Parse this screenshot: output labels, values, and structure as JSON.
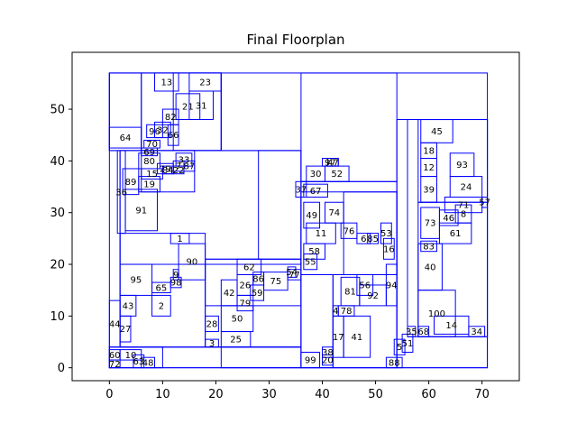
{
  "chart_data": {
    "type": "floorplan",
    "title": "Final Floorplan",
    "xlim": [
      -7,
      77
    ],
    "ylim": [
      -2.5,
      61
    ],
    "xticks": [
      0,
      10,
      20,
      30,
      40,
      50,
      60,
      70
    ],
    "yticks": [
      0,
      10,
      20,
      30,
      40,
      50
    ],
    "colors": {
      "outline": "#0000ff",
      "axes": "#000000"
    },
    "rooms": [
      {
        "id": "1",
        "x": 11.5,
        "y": 24,
        "w": 3.5,
        "h": 2
      },
      {
        "id": "2",
        "x": 8,
        "y": 10,
        "w": 3.5,
        "h": 4
      },
      {
        "id": "3",
        "x": 18,
        "y": 4,
        "w": 2.5,
        "h": 1.5
      },
      {
        "id": "5",
        "x": 53.5,
        "y": 2.5,
        "w": 2,
        "h": 3
      },
      {
        "id": "6",
        "x": 46.5,
        "y": 24,
        "w": 2.5,
        "h": 2
      },
      {
        "id": "8",
        "x": 65,
        "y": 28,
        "w": 3,
        "h": 3.5
      },
      {
        "id": "9",
        "x": 12,
        "y": 17,
        "w": 1,
        "h": 2
      },
      {
        "id": "10",
        "x": 2,
        "y": 1.5,
        "w": 4,
        "h": 2
      },
      {
        "id": "11",
        "x": 37,
        "y": 24,
        "w": 5.5,
        "h": 4
      },
      {
        "id": "12",
        "x": 58.5,
        "y": 37,
        "w": 3,
        "h": 3.5
      },
      {
        "id": "13",
        "x": 8.5,
        "y": 53.5,
        "w": 4.5,
        "h": 3.5
      },
      {
        "id": "14",
        "x": 61,
        "y": 6.5,
        "w": 6.5,
        "h": 3.5
      },
      {
        "id": "15",
        "x": 6,
        "y": 36.5,
        "w": 4,
        "h": 2
      },
      {
        "id": "16",
        "x": 51.5,
        "y": 21,
        "w": 2,
        "h": 4
      },
      {
        "id": "17",
        "x": 42,
        "y": 2,
        "w": 2,
        "h": 8
      },
      {
        "id": "18",
        "x": 58.5,
        "y": 40.5,
        "w": 3,
        "h": 3
      },
      {
        "id": "19",
        "x": 5.5,
        "y": 34,
        "w": 4,
        "h": 3
      },
      {
        "id": "20",
        "x": 40,
        "y": 0.5,
        "w": 2,
        "h": 2
      },
      {
        "id": "21",
        "x": 12.5,
        "y": 48,
        "w": 4.5,
        "h": 5
      },
      {
        "id": "23",
        "x": 15,
        "y": 53.5,
        "w": 6,
        "h": 3.5
      },
      {
        "id": "24",
        "x": 64,
        "y": 33,
        "w": 6,
        "h": 4
      },
      {
        "id": "25",
        "x": 21,
        "y": 4,
        "w": 5.5,
        "h": 3
      },
      {
        "id": "26",
        "x": 24,
        "y": 14,
        "w": 3,
        "h": 4
      },
      {
        "id": "27",
        "x": 2,
        "y": 5,
        "w": 2,
        "h": 5
      },
      {
        "id": "28",
        "x": 18,
        "y": 7,
        "w": 2.5,
        "h": 3
      },
      {
        "id": "29",
        "x": 9,
        "y": 37.5,
        "w": 3,
        "h": 2
      },
      {
        "id": "30",
        "x": 37,
        "y": 36,
        "w": 3.5,
        "h": 3
      },
      {
        "id": "31",
        "x": 15,
        "y": 48,
        "w": 4.5,
        "h": 5.5
      },
      {
        "id": "32",
        "x": 8.5,
        "y": 44.5,
        "w": 3,
        "h": 3
      },
      {
        "id": "33",
        "x": 12.5,
        "y": 39,
        "w": 3,
        "h": 2.5
      },
      {
        "id": "34",
        "x": 67.5,
        "y": 6,
        "w": 3,
        "h": 2
      },
      {
        "id": "35",
        "x": 56,
        "y": 6,
        "w": 1.5,
        "h": 2
      },
      {
        "id": "36",
        "x": 1.5,
        "y": 26,
        "w": 1.5,
        "h": 16
      },
      {
        "id": "37",
        "x": 35,
        "y": 33,
        "w": 2,
        "h": 3
      },
      {
        "id": "38",
        "x": 40,
        "y": 2,
        "w": 2,
        "h": 2
      },
      {
        "id": "39",
        "x": 58.5,
        "y": 32,
        "w": 3,
        "h": 5
      },
      {
        "id": "40",
        "x": 58,
        "y": 15,
        "w": 4.5,
        "h": 9
      },
      {
        "id": "41",
        "x": 44,
        "y": 2,
        "w": 5,
        "h": 8
      },
      {
        "id": "42",
        "x": 21,
        "y": 12,
        "w": 3,
        "h": 5
      },
      {
        "id": "43",
        "x": 2,
        "y": 10,
        "w": 3,
        "h": 4
      },
      {
        "id": "44",
        "x": 0,
        "y": 4,
        "w": 2,
        "h": 9
      },
      {
        "id": "45",
        "x": 58.5,
        "y": 43.5,
        "w": 6,
        "h": 4.5
      },
      {
        "id": "46",
        "x": 62,
        "y": 27.5,
        "w": 3.5,
        "h": 3
      },
      {
        "id": "48",
        "x": 6,
        "y": 0,
        "w": 2.5,
        "h": 2
      },
      {
        "id": "49",
        "x": 36.5,
        "y": 27,
        "w": 3,
        "h": 5
      },
      {
        "id": "50",
        "x": 21,
        "y": 7,
        "w": 6,
        "h": 5
      },
      {
        "id": "51",
        "x": 55,
        "y": 3,
        "w": 2,
        "h": 3.5
      },
      {
        "id": "52",
        "x": 40.5,
        "y": 36,
        "w": 4.5,
        "h": 3
      },
      {
        "id": "53",
        "x": 51,
        "y": 24,
        "w": 2,
        "h": 4
      },
      {
        "id": "55",
        "x": 36.5,
        "y": 19,
        "w": 2.5,
        "h": 3
      },
      {
        "id": "56",
        "x": 46.5,
        "y": 14,
        "w": 3,
        "h": 4
      },
      {
        "id": "58",
        "x": 36.5,
        "y": 21,
        "w": 4,
        "h": 3
      },
      {
        "id": "59",
        "x": 26.5,
        "y": 13,
        "w": 2.5,
        "h": 3
      },
      {
        "id": "60",
        "x": 0,
        "y": 1.5,
        "w": 2,
        "h": 2
      },
      {
        "id": "61",
        "x": 62,
        "y": 24,
        "w": 6,
        "h": 4
      },
      {
        "id": "62",
        "x": 24,
        "y": 18,
        "w": 4.5,
        "h": 3
      },
      {
        "id": "63",
        "x": 4.5,
        "y": 0,
        "w": 2,
        "h": 2.5
      },
      {
        "id": "64",
        "x": 0,
        "y": 42.5,
        "w": 6,
        "h": 4
      },
      {
        "id": "65",
        "x": 8,
        "y": 14.5,
        "w": 3.5,
        "h": 2
      },
      {
        "id": "66",
        "x": 11,
        "y": 43,
        "w": 2,
        "h": 4
      },
      {
        "id": "67",
        "x": 36.5,
        "y": 33,
        "w": 4.5,
        "h": 2.5
      },
      {
        "id": "68",
        "x": 58,
        "y": 6,
        "w": 2,
        "h": 2
      },
      {
        "id": "69",
        "x": 6,
        "y": 41,
        "w": 3,
        "h": 1.5
      },
      {
        "id": "70",
        "x": 6.5,
        "y": 42.5,
        "w": 3,
        "h": 1.5
      },
      {
        "id": "71",
        "x": 63,
        "y": 30,
        "w": 7,
        "h": 3
      },
      {
        "id": "72",
        "x": 0,
        "y": 0,
        "w": 2,
        "h": 1.5
      },
      {
        "id": "73",
        "x": 58.5,
        "y": 25,
        "w": 3.5,
        "h": 6
      },
      {
        "id": "74",
        "x": 40.5,
        "y": 28,
        "w": 3.5,
        "h": 4
      },
      {
        "id": "75",
        "x": 29,
        "y": 15,
        "w": 4.5,
        "h": 3.5
      },
      {
        "id": "76",
        "x": 43.5,
        "y": 25,
        "w": 3,
        "h": 3
      },
      {
        "id": "77",
        "x": 33.5,
        "y": 17,
        "w": 2.5,
        "h": 2
      },
      {
        "id": "78",
        "x": 43,
        "y": 10,
        "w": 3,
        "h": 2
      },
      {
        "id": "79",
        "x": 24,
        "y": 11,
        "w": 3,
        "h": 3
      },
      {
        "id": "80",
        "x": 5.5,
        "y": 38.5,
        "w": 4,
        "h": 3
      },
      {
        "id": "81",
        "x": 43.5,
        "y": 12,
        "w": 3.5,
        "h": 5.5
      },
      {
        "id": "82",
        "x": 10,
        "y": 47,
        "w": 3,
        "h": 3
      },
      {
        "id": "83",
        "x": 58.5,
        "y": 22.5,
        "w": 3,
        "h": 2
      },
      {
        "id": "85",
        "x": 48.5,
        "y": 24,
        "w": 2,
        "h": 2
      },
      {
        "id": "86",
        "x": 27,
        "y": 16,
        "w": 2,
        "h": 2.5
      },
      {
        "id": "87",
        "x": 14,
        "y": 38,
        "w": 2,
        "h": 2
      },
      {
        "id": "89",
        "x": 2.5,
        "y": 33.5,
        "w": 3,
        "h": 5
      },
      {
        "id": "90",
        "x": 13,
        "y": 17,
        "w": 5,
        "h": 7
      },
      {
        "id": "91",
        "x": 3,
        "y": 26.5,
        "w": 6,
        "h": 8
      },
      {
        "id": "92",
        "x": 47,
        "y": 12,
        "w": 5,
        "h": 4
      },
      {
        "id": "93",
        "x": 64,
        "y": 37,
        "w": 4.5,
        "h": 4.5
      },
      {
        "id": "94",
        "x": 52,
        "y": 12,
        "w": 2,
        "h": 8
      },
      {
        "id": "95",
        "x": 2,
        "y": 14,
        "w": 6,
        "h": 6
      },
      {
        "id": "96",
        "x": 7,
        "y": 44.5,
        "w": 3,
        "h": 2.5
      },
      {
        "id": "97",
        "x": 40,
        "y": 39,
        "w": 3,
        "h": 1.5
      },
      {
        "id": "98",
        "x": 11.5,
        "y": 15.5,
        "w": 2,
        "h": 2
      },
      {
        "id": "99",
        "x": 36,
        "y": 0,
        "w": 3.5,
        "h": 3
      },
      {
        "id": "100",
        "x": 58,
        "y": 6,
        "w": 7,
        "h": 9
      },
      {
        "id": "4",
        "x": 42,
        "y": 10,
        "w": 1,
        "h": 2
      },
      {
        "id": "7",
        "x": 12,
        "y": 38,
        "w": 2,
        "h": 2
      },
      {
        "id": "22",
        "x": 12,
        "y": 37.5,
        "w": 2,
        "h": 1.5
      },
      {
        "id": "47",
        "x": 41,
        "y": 39,
        "w": 2,
        "h": 1.5
      },
      {
        "id": "54",
        "x": 33.5,
        "y": 17.5,
        "w": 1.5,
        "h": 2
      },
      {
        "id": "57",
        "x": 70,
        "y": 31,
        "w": 1,
        "h": 2
      },
      {
        "id": "84",
        "x": 10,
        "y": 37.5,
        "w": 2,
        "h": 1.5
      },
      {
        "id": "88",
        "x": 52,
        "y": 0,
        "w": 3,
        "h": 2
      }
    ],
    "outlines": [
      {
        "x": 0,
        "y": 0,
        "w": 71,
        "h": 57
      },
      {
        "x": 0,
        "y": 0,
        "w": 36,
        "h": 4
      },
      {
        "x": 0,
        "y": 42,
        "w": 21,
        "h": 15
      },
      {
        "x": 6,
        "y": 42,
        "w": 15,
        "h": 15
      },
      {
        "x": 12,
        "y": 42,
        "w": 9,
        "h": 15
      },
      {
        "x": 0,
        "y": 42,
        "w": 6,
        "h": 15
      },
      {
        "x": 2,
        "y": 4,
        "w": 34,
        "h": 38
      },
      {
        "x": 2,
        "y": 20,
        "w": 34,
        "h": 22
      },
      {
        "x": 2,
        "y": 4,
        "w": 16,
        "h": 22
      },
      {
        "x": 18,
        "y": 4,
        "w": 18,
        "h": 17
      },
      {
        "x": 36,
        "y": 0,
        "w": 18,
        "h": 36
      },
      {
        "x": 36,
        "y": 18,
        "w": 18,
        "h": 16
      },
      {
        "x": 42,
        "y": 0,
        "w": 12,
        "h": 18
      },
      {
        "x": 36,
        "y": 0,
        "w": 6,
        "h": 18
      },
      {
        "x": 54,
        "y": 0,
        "w": 17,
        "h": 48
      },
      {
        "x": 56,
        "y": 6,
        "w": 15,
        "h": 42
      },
      {
        "x": 58,
        "y": 32,
        "w": 13,
        "h": 16
      },
      {
        "x": 58,
        "y": 6,
        "w": 13,
        "h": 26
      },
      {
        "x": 21,
        "y": 0,
        "w": 15,
        "h": 4
      },
      {
        "x": 36,
        "y": 36,
        "w": 18,
        "h": 21
      },
      {
        "x": 6,
        "y": 34,
        "w": 10,
        "h": 8
      },
      {
        "x": 0,
        "y": 0,
        "w": 10,
        "h": 4
      },
      {
        "x": 44,
        "y": 18,
        "w": 10,
        "h": 16
      },
      {
        "x": 28,
        "y": 21,
        "w": 8,
        "h": 21
      },
      {
        "x": 18,
        "y": 12,
        "w": 18,
        "h": 9
      }
    ]
  }
}
